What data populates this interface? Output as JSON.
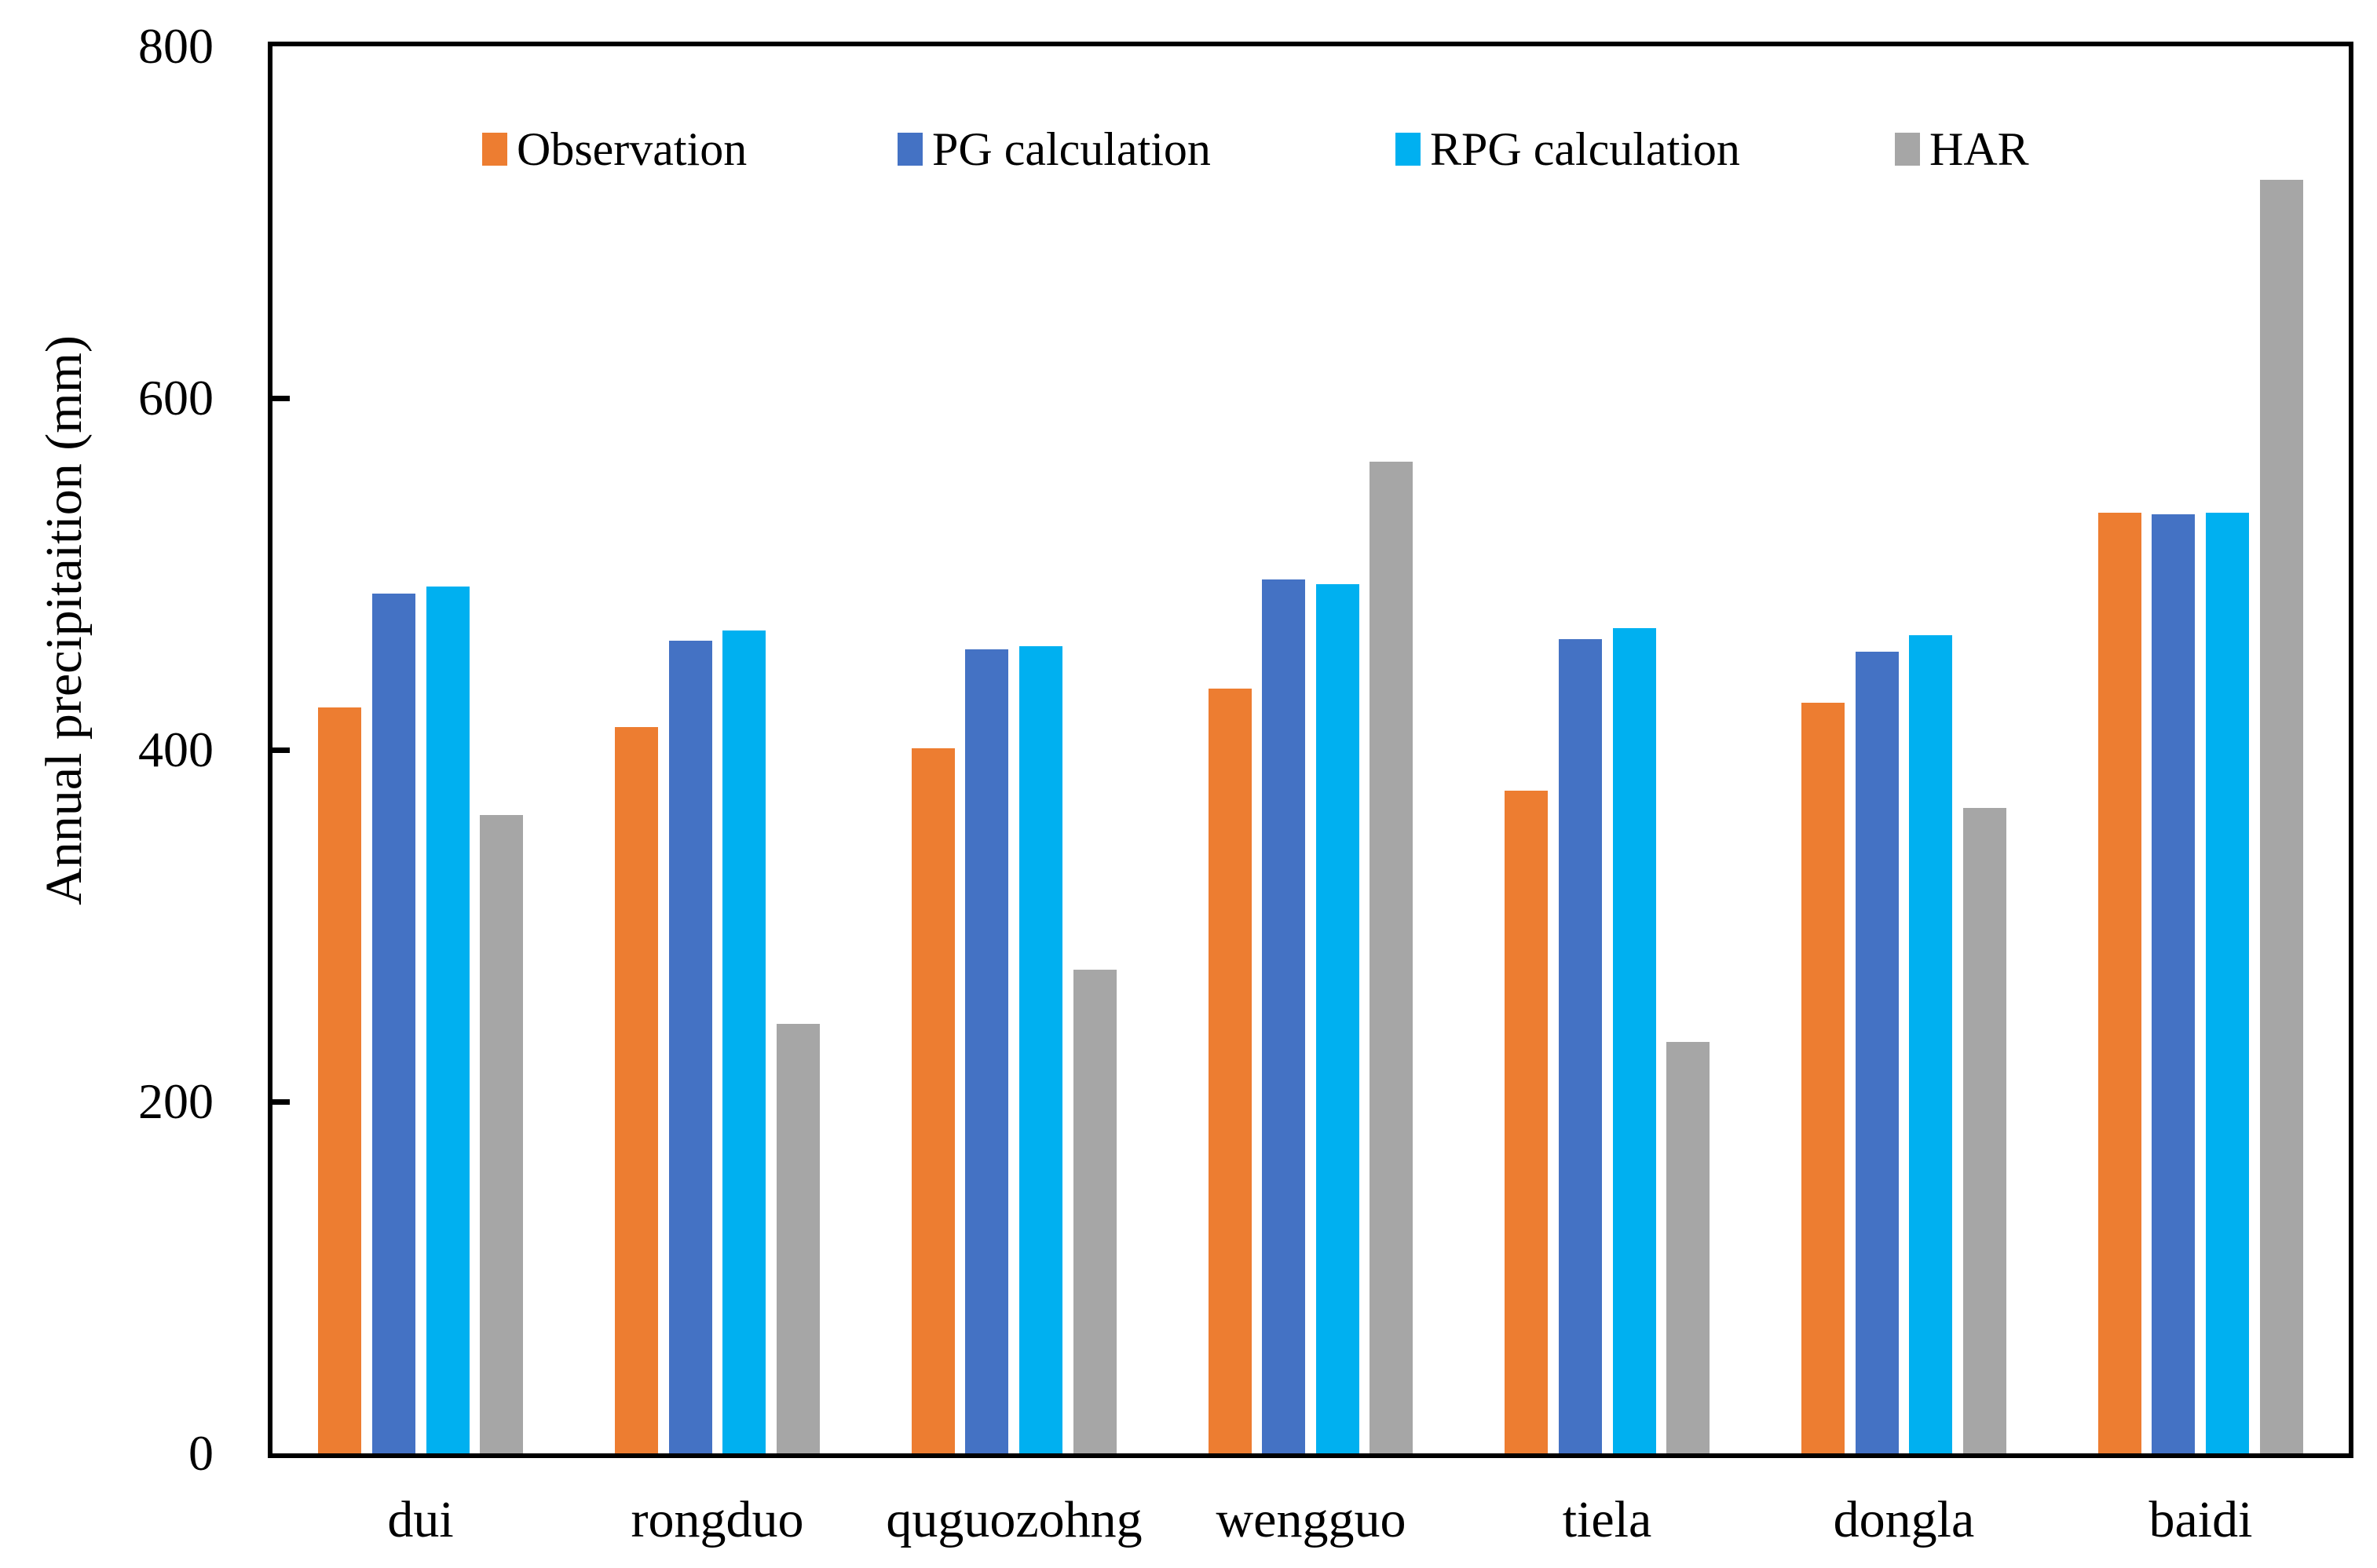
{
  "figure": {
    "background_color": "#ffffff",
    "axis_color": "#000000",
    "text_color": "#000000"
  },
  "y_axis": {
    "title": "Annual precipitaition (mm)",
    "tick_labels": [
      "0",
      "200",
      "400",
      "600",
      "800"
    ],
    "min": 0,
    "max": 800,
    "step": 200
  },
  "x_axis": {
    "categories": [
      "dui",
      "rongduo",
      "quguozohng",
      "wengguo",
      "tiela",
      "dongla",
      "baidi"
    ]
  },
  "legend": {
    "position": "top-center",
    "items": [
      {
        "label": "Observation",
        "color": "#ED7D31"
      },
      {
        "label": "PG calculation",
        "color": "#4472C4"
      },
      {
        "label": "RPG calculation",
        "color": "#00B0F0"
      },
      {
        "label": "HAR",
        "color": "#A6A6A6"
      }
    ]
  },
  "chart_data": {
    "type": "bar",
    "title": "",
    "xlabel": "",
    "ylabel": "Annual precipitaition (mm)",
    "ylim": [
      0,
      800
    ],
    "ytick_step": 200,
    "grid": false,
    "legend_position": "top-center",
    "categories": [
      "dui",
      "rongduo",
      "quguozohng",
      "wengguo",
      "tiela",
      "dongla",
      "baidi"
    ],
    "series": [
      {
        "name": "Observation",
        "color": "#ED7D31",
        "values": [
          424,
          413,
          401,
          435,
          377,
          427,
          535
        ]
      },
      {
        "name": "PG calculation",
        "color": "#4472C4",
        "values": [
          489,
          462,
          457,
          497,
          463,
          456,
          534
        ]
      },
      {
        "name": "RPG calculation",
        "color": "#00B0F0",
        "values": [
          493,
          468,
          459,
          494,
          469,
          465,
          535
        ]
      },
      {
        "name": "HAR",
        "color": "#A6A6A6",
        "values": [
          363,
          244,
          275,
          564,
          234,
          367,
          724
        ]
      }
    ]
  }
}
